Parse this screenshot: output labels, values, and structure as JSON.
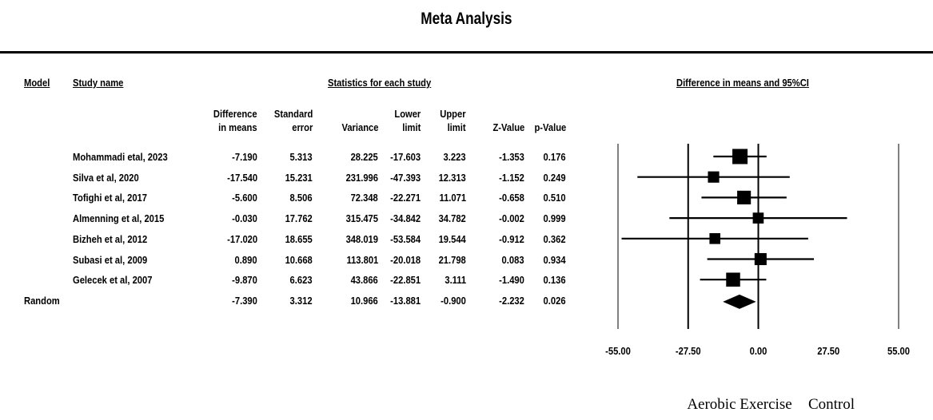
{
  "title": "Meta Analysis",
  "headers": {
    "model": "Model",
    "study_name": "Study name",
    "stats_group": "Statistics for each study",
    "plot_group": "Difference in means and 95%CI"
  },
  "columns": {
    "diff": [
      "Difference",
      "in means"
    ],
    "se": [
      "Standard",
      "error"
    ],
    "variance": "Variance",
    "lower": [
      "Lower",
      "limit"
    ],
    "upper": [
      "Upper",
      "limit"
    ],
    "z": "Z-Value",
    "p": "p-Value"
  },
  "rows": [
    {
      "study": "Mohammadi etal, 2023",
      "diff": "-7.190",
      "se": "5.313",
      "variance": "28.225",
      "lower": "-17.603",
      "upper": "3.223",
      "z": "-1.353",
      "p": "0.176"
    },
    {
      "study": "Silva et al, 2020",
      "diff": "-17.540",
      "se": "15.231",
      "variance": "231.996",
      "lower": "-47.393",
      "upper": "12.313",
      "z": "-1.152",
      "p": "0.249"
    },
    {
      "study": "Tofighi et al, 2017",
      "diff": "-5.600",
      "se": "8.506",
      "variance": "72.348",
      "lower": "-22.271",
      "upper": "11.071",
      "z": "-0.658",
      "p": "0.510"
    },
    {
      "study": "Almenning et al, 2015",
      "diff": "-0.030",
      "se": "17.762",
      "variance": "315.475",
      "lower": "-34.842",
      "upper": "34.782",
      "z": "-0.002",
      "p": "0.999"
    },
    {
      "study": "Bizheh et al, 2012",
      "diff": "-17.020",
      "se": "18.655",
      "variance": "348.019",
      "lower": "-53.584",
      "upper": "19.544",
      "z": "-0.912",
      "p": "0.362"
    },
    {
      "study": "Subasi et al, 2009",
      "diff": "0.890",
      "se": "10.668",
      "variance": "113.801",
      "lower": "-20.018",
      "upper": "21.798",
      "z": "0.083",
      "p": "0.934"
    },
    {
      "study": "Gelecek et al, 2007",
      "diff": "-9.870",
      "se": "6.623",
      "variance": "43.866",
      "lower": "-22.851",
      "upper": "3.111",
      "z": "-1.490",
      "p": "0.136"
    }
  ],
  "summary": {
    "model": "Random",
    "diff": "-7.390",
    "se": "3.312",
    "variance": "10.966",
    "lower": "-13.881",
    "upper": "-0.900",
    "z": "-2.232",
    "p": "0.026"
  },
  "favours": {
    "left": "Aerobic Exercise",
    "right": "Control"
  },
  "chart_data": {
    "type": "forest",
    "title": "Meta Analysis",
    "xlim": [
      -55,
      55
    ],
    "xticks": [
      "-55.00",
      "-27.50",
      "0.00",
      "27.50",
      "55.00"
    ],
    "xtick_values": [
      -55,
      -27.5,
      0,
      27.5,
      55
    ],
    "reference_lines": [
      -27.5,
      0
    ],
    "studies": [
      {
        "name": "Mohammadi etal, 2023",
        "estimate": -7.19,
        "lower": -17.603,
        "upper": 3.223,
        "weight": 28.2
      },
      {
        "name": "Silva et al, 2020",
        "estimate": -17.54,
        "lower": -47.393,
        "upper": 12.313,
        "weight": 4.3
      },
      {
        "name": "Tofighi et al, 2017",
        "estimate": -5.6,
        "lower": -22.271,
        "upper": 11.071,
        "weight": 16.5
      },
      {
        "name": "Almenning et al, 2015",
        "estimate": -0.03,
        "lower": -34.842,
        "upper": 34.782,
        "weight": 3.1
      },
      {
        "name": "Bizheh et al, 2012",
        "estimate": -17.02,
        "lower": -53.584,
        "upper": 19.544,
        "weight": 2.9
      },
      {
        "name": "Subasi et al, 2009",
        "estimate": 0.89,
        "lower": -20.018,
        "upper": 21.798,
        "weight": 7.3
      },
      {
        "name": "Gelecek et al, 2007",
        "estimate": -9.87,
        "lower": -22.851,
        "upper": 3.111,
        "weight": 18.5
      }
    ],
    "summary": {
      "name": "Random",
      "estimate": -7.39,
      "lower": -13.881,
      "upper": -0.9
    }
  }
}
